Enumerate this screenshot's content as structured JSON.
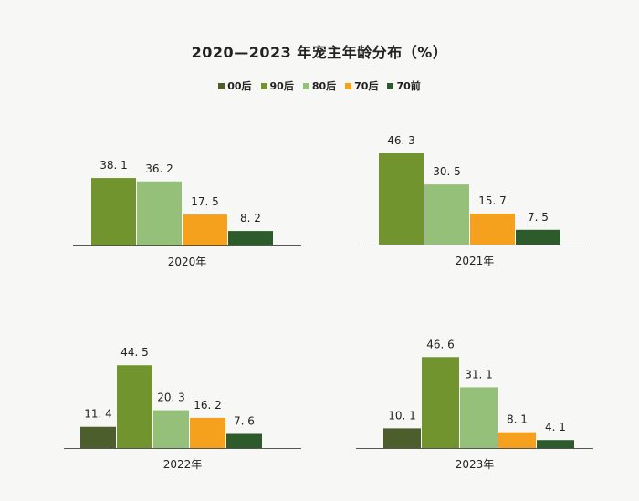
{
  "title": "2020—2023 年宠主年龄分布（%）",
  "legend": [
    {
      "label": "00后",
      "color": "#4b5e2c"
    },
    {
      "label": "90后",
      "color": "#72942f"
    },
    {
      "label": "80后",
      "color": "#94c07a"
    },
    {
      "label": "70后",
      "color": "#f5a11d"
    },
    {
      "label": "70前",
      "color": "#2e5b2c"
    }
  ],
  "chart_data": [
    {
      "type": "bar",
      "year": "2020年",
      "categories": [
        "90后",
        "80后",
        "70后",
        "70前"
      ],
      "values": [
        38.1,
        36.2,
        17.5,
        8.2
      ],
      "value_labels": [
        "38. 1",
        "36. 2",
        "17. 5",
        "8. 2"
      ],
      "colors": [
        "#72942f",
        "#94c07a",
        "#f5a11d",
        "#2e5b2c"
      ]
    },
    {
      "type": "bar",
      "year": "2021年",
      "categories": [
        "90后",
        "80后",
        "70后",
        "70前"
      ],
      "values": [
        46.3,
        30.5,
        15.7,
        7.5
      ],
      "value_labels": [
        "46. 3",
        "30. 5",
        "15. 7",
        "7. 5"
      ],
      "colors": [
        "#72942f",
        "#94c07a",
        "#f5a11d",
        "#2e5b2c"
      ]
    },
    {
      "type": "bar",
      "year": "2022年",
      "categories": [
        "00后",
        "90后",
        "80后",
        "70后",
        "70前"
      ],
      "values": [
        11.4,
        44.5,
        20.3,
        16.2,
        7.6
      ],
      "value_labels": [
        "11. 4",
        "44. 5",
        "20. 3",
        "16. 2",
        "7. 6"
      ],
      "colors": [
        "#4b5e2c",
        "#72942f",
        "#94c07a",
        "#f5a11d",
        "#2e5b2c"
      ]
    },
    {
      "type": "bar",
      "year": "2023年",
      "categories": [
        "00后",
        "90后",
        "80后",
        "70后",
        "70前"
      ],
      "values": [
        10.1,
        46.6,
        31.1,
        8.1,
        4.1
      ],
      "value_labels": [
        "10. 1",
        "46. 6",
        "31. 1",
        "8. 1",
        "4. 1"
      ],
      "colors": [
        "#4b5e2c",
        "#72942f",
        "#94c07a",
        "#f5a11d",
        "#2e5b2c"
      ]
    }
  ]
}
